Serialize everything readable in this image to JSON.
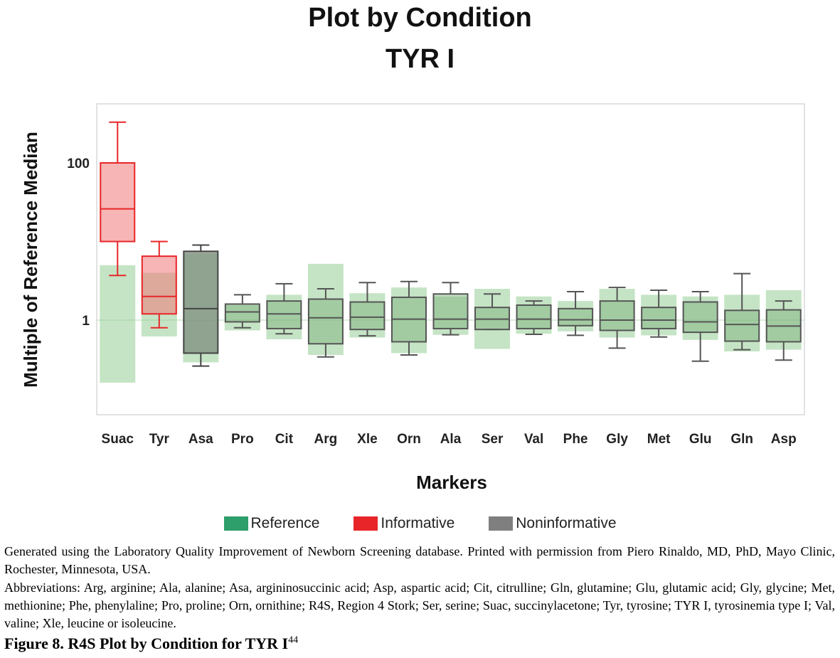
{
  "chart_data": {
    "type": "box",
    "title": "Plot by Condition",
    "subtitle": "TYR I",
    "xlabel": "Markers",
    "ylabel": "Multiple of Reference Median",
    "yscale": "log",
    "ylim": [
      0.15,
      400
    ],
    "yticks": [
      {
        "label": "1",
        "value": 1
      },
      {
        "label": "100",
        "value": 100
      }
    ],
    "legend": [
      {
        "name": "Reference",
        "color": "#2e9e6b"
      },
      {
        "name": "Informative",
        "color": "#e8262a"
      },
      {
        "name": "Noninformative",
        "color": "#7f7f7f"
      }
    ],
    "legend_position": "bottom",
    "categories": [
      "Suac",
      "Tyr",
      "Asa",
      "Pro",
      "Cit",
      "Arg",
      "Xle",
      "Orn",
      "Ala",
      "Ser",
      "Val",
      "Phe",
      "Gly",
      "Met",
      "Glu",
      "Gln",
      "Asp"
    ],
    "reference_ranges": [
      [
        0.16,
        5.0
      ],
      [
        0.62,
        4.0
      ],
      [
        0.29,
        7.0
      ],
      [
        0.74,
        1.55
      ],
      [
        0.57,
        2.1
      ],
      [
        0.36,
        5.2
      ],
      [
        0.6,
        2.2
      ],
      [
        0.38,
        2.6
      ],
      [
        0.65,
        2.0
      ],
      [
        0.43,
        2.5
      ],
      [
        0.67,
        2.0
      ],
      [
        0.72,
        1.75
      ],
      [
        0.6,
        2.5
      ],
      [
        0.64,
        2.1
      ],
      [
        0.56,
        2.0
      ],
      [
        0.4,
        2.1
      ],
      [
        0.42,
        2.4
      ]
    ],
    "boxes": [
      {
        "name": "Suac",
        "class": "Informative",
        "min": 3.7,
        "q1": 10,
        "median": 26,
        "q3": 100,
        "max": 330
      },
      {
        "name": "Tyr",
        "class": "Informative",
        "min": 0.8,
        "q1": 1.2,
        "median": 2.0,
        "q3": 6.5,
        "max": 10
      },
      {
        "name": "Asa",
        "class": "Noninformative",
        "min": 0.26,
        "q1": 0.38,
        "median": 1.4,
        "q3": 7.5,
        "max": 9
      },
      {
        "name": "Pro",
        "class": "Reference",
        "min": 0.8,
        "q1": 0.95,
        "median": 1.27,
        "q3": 1.6,
        "max": 2.1
      },
      {
        "name": "Cit",
        "class": "Reference",
        "min": 0.67,
        "q1": 0.78,
        "median": 1.2,
        "q3": 1.75,
        "max": 2.9
      },
      {
        "name": "Arg",
        "class": "Reference",
        "min": 0.34,
        "q1": 0.5,
        "median": 1.07,
        "q3": 1.85,
        "max": 2.5
      },
      {
        "name": "Xle",
        "class": "Reference",
        "min": 0.63,
        "q1": 0.76,
        "median": 1.09,
        "q3": 1.7,
        "max": 3.0
      },
      {
        "name": "Orn",
        "class": "Reference",
        "min": 0.36,
        "q1": 0.53,
        "median": 1.03,
        "q3": 1.95,
        "max": 3.1
      },
      {
        "name": "Ala",
        "class": "Reference",
        "min": 0.65,
        "q1": 0.78,
        "median": 1.03,
        "q3": 2.15,
        "max": 3.0
      },
      {
        "name": "Ser",
        "class": "Reference",
        "min": 0.76,
        "q1": 0.76,
        "median": 1.03,
        "q3": 1.45,
        "max": 2.15
      },
      {
        "name": "Val",
        "class": "Reference",
        "min": 0.66,
        "q1": 0.78,
        "median": 1.03,
        "q3": 1.55,
        "max": 1.75
      },
      {
        "name": "Phe",
        "class": "Reference",
        "min": 0.64,
        "q1": 0.85,
        "median": 1.01,
        "q3": 1.4,
        "max": 2.3
      },
      {
        "name": "Gly",
        "class": "Reference",
        "min": 0.44,
        "q1": 0.74,
        "median": 1.0,
        "q3": 1.75,
        "max": 2.6
      },
      {
        "name": "Met",
        "class": "Reference",
        "min": 0.61,
        "q1": 0.78,
        "median": 1.0,
        "q3": 1.45,
        "max": 2.4
      },
      {
        "name": "Glu",
        "class": "Reference",
        "min": 0.3,
        "q1": 0.7,
        "median": 0.95,
        "q3": 1.7,
        "max": 2.3
      },
      {
        "name": "Gln",
        "class": "Reference",
        "min": 0.42,
        "q1": 0.54,
        "median": 0.88,
        "q3": 1.33,
        "max": 3.9
      },
      {
        "name": "Asp",
        "class": "Reference",
        "min": 0.31,
        "q1": 0.53,
        "median": 0.84,
        "q3": 1.35,
        "max": 1.75
      }
    ]
  },
  "note1": "Generated using the Laboratory Quality Improvement of Newborn Screening database. Printed with permission from Piero Rinaldo, MD, PhD, Mayo Clinic, Rochester, Minnesota, USA.",
  "note2": "Abbreviations: Arg, arginine; Ala, alanine; Asa, argininosuccinic acid; Asp, aspartic acid; Cit, citrulline; Gln, glutamine; Glu, glutamic acid; Gly, glycine; Met, methionine; Phe, phenylaline; Pro, proline; Orn, ornithine; R4S, Region 4 Stork; Ser, serine; Suac, succinylacetone; Tyr, tyrosine; TYR I, tyrosinemia type I; Val, valine; Xle, leucine or isoleucine.",
  "figure_caption": "Figure 8. R4S Plot by Condition for TYR I",
  "figure_caption_ref": "44"
}
